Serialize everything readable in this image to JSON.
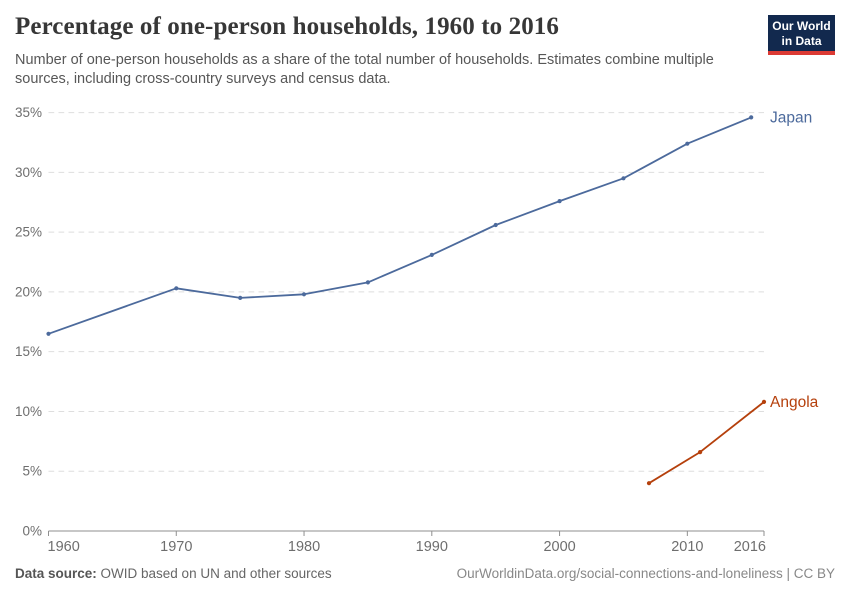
{
  "chart_data": {
    "type": "line",
    "title": "Percentage of one-person households, 1960 to 2016",
    "subtitle": "Number of one-person households as a share of the total number of households. Estimates combine multiple sources, including cross-country surveys and census data.",
    "xlabel": "",
    "ylabel": "",
    "xlim": [
      1960,
      2016
    ],
    "ylim": [
      0,
      35
    ],
    "grid": "horizontal-dashed",
    "legend_position": "labels-at-line-end",
    "axes": {
      "x_ticks": [
        {
          "v": 1960,
          "label": "1960"
        },
        {
          "v": 1970,
          "label": "1970"
        },
        {
          "v": 1980,
          "label": "1980"
        },
        {
          "v": 1990,
          "label": "1990"
        },
        {
          "v": 2000,
          "label": "2000"
        },
        {
          "v": 2010,
          "label": "2010"
        },
        {
          "v": 2016,
          "label": "2016"
        }
      ],
      "y_ticks": [
        {
          "v": 0,
          "label": "0%"
        },
        {
          "v": 5,
          "label": "5%"
        },
        {
          "v": 10,
          "label": "10%"
        },
        {
          "v": 15,
          "label": "15%"
        },
        {
          "v": 20,
          "label": "20%"
        },
        {
          "v": 25,
          "label": "25%"
        },
        {
          "v": 30,
          "label": "30%"
        },
        {
          "v": 35,
          "label": "35%"
        }
      ]
    },
    "series": [
      {
        "name": "Japan",
        "color": "#4c6a9c",
        "x": [
          1960,
          1970,
          1975,
          1980,
          1985,
          1990,
          1995,
          2000,
          2005,
          2010,
          2015
        ],
        "y": [
          16.5,
          20.3,
          19.5,
          19.8,
          20.8,
          23.1,
          25.6,
          27.6,
          29.5,
          32.4,
          34.6
        ]
      },
      {
        "name": "Angola",
        "color": "#b5400c",
        "x": [
          2007,
          2011,
          2016
        ],
        "y": [
          4.0,
          6.6,
          10.8
        ]
      }
    ],
    "style": {
      "gridline_color": "#dedede",
      "axis_color": "#8f8f8f",
      "tick_label_color": "#6e6e6e"
    }
  },
  "logo": {
    "line1": "Our World",
    "line2": "in Data",
    "bg_color": "#12294e",
    "stripe_color": "#dc3a34"
  },
  "footer": {
    "datasource_label": "Data source:",
    "datasource_text": " OWID based on UN and other sources",
    "citation": "OurWorldinData.org/social-connections-and-loneliness | CC BY"
  }
}
